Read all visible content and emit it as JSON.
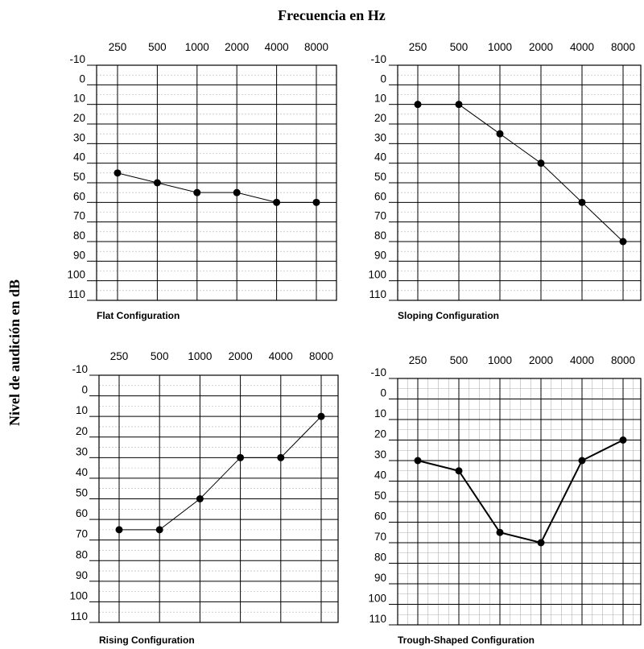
{
  "xlabel": "Frecuencia en Hz",
  "ylabel": "Nivel de audición en dB",
  "chart_data": [
    {
      "type": "line",
      "title": "Flat Configuration",
      "categories": [
        "250",
        "500",
        "1000",
        "2000",
        "4000",
        "8000"
      ],
      "series": [
        {
          "values": [
            45,
            50,
            55,
            55,
            60,
            60
          ]
        }
      ],
      "ylim": [
        -10,
        110
      ],
      "y_inverted": true,
      "yticks": [
        -10,
        0,
        10,
        20,
        30,
        40,
        50,
        60,
        70,
        80,
        90,
        100,
        110
      ],
      "grid": true
    },
    {
      "type": "line",
      "title": "Sloping Configuration",
      "categories": [
        "250",
        "500",
        "1000",
        "2000",
        "4000",
        "8000"
      ],
      "series": [
        {
          "values": [
            10,
            10,
            25,
            40,
            60,
            80
          ]
        }
      ],
      "ylim": [
        -10,
        110
      ],
      "y_inverted": true,
      "yticks": [
        -10,
        0,
        10,
        20,
        30,
        40,
        50,
        60,
        70,
        80,
        90,
        100,
        110
      ],
      "grid": true
    },
    {
      "type": "line",
      "title": "Rising Configuration",
      "categories": [
        "250",
        "500",
        "1000",
        "2000",
        "4000",
        "8000"
      ],
      "series": [
        {
          "values": [
            65,
            65,
            50,
            30,
            30,
            10
          ]
        }
      ],
      "ylim": [
        -10,
        110
      ],
      "y_inverted": true,
      "yticks": [
        -10,
        0,
        10,
        20,
        30,
        40,
        50,
        60,
        70,
        80,
        90,
        100,
        110
      ],
      "grid": true
    },
    {
      "type": "line",
      "title": "Trough-Shaped Configuration",
      "categories": [
        "250",
        "500",
        "1000",
        "2000",
        "4000",
        "8000"
      ],
      "series": [
        {
          "values": [
            30,
            35,
            65,
            70,
            30,
            20
          ]
        }
      ],
      "ylim": [
        -10,
        110
      ],
      "y_inverted": true,
      "yticks": [
        -10,
        0,
        10,
        20,
        30,
        40,
        50,
        60,
        70,
        80,
        90,
        100,
        110
      ],
      "grid": true
    }
  ],
  "colors": {
    "line": "#000000",
    "grid_major": "#000000",
    "grid_minor": "#b0b0b0"
  }
}
